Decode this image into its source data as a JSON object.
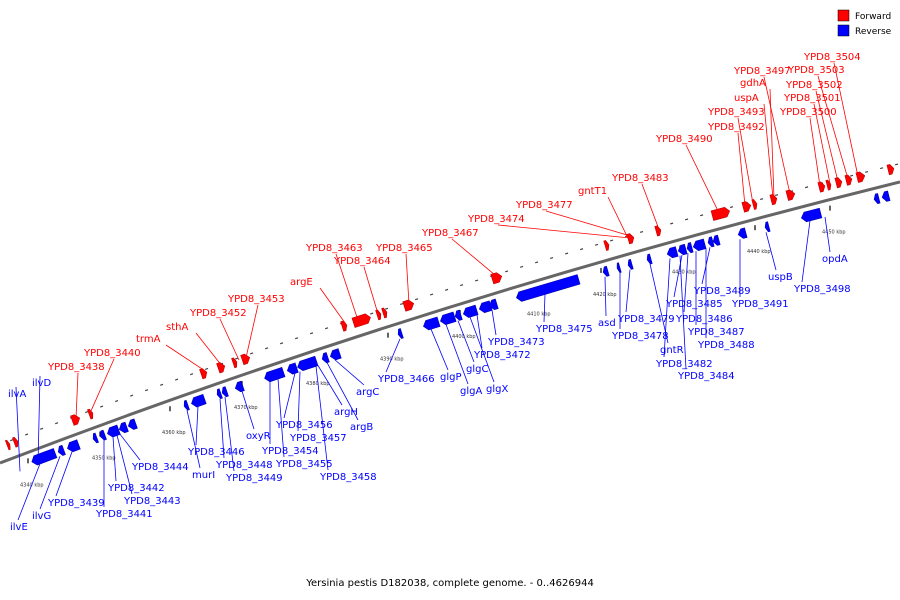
{
  "caption": "Yersinia pestis D182038, complete genome. - 0..4626944",
  "legend": [
    {
      "label": "Forward",
      "color": "#ff0000"
    },
    {
      "label": "Reverse",
      "color": "#0000ff"
    }
  ],
  "colors": {
    "forward": "#ff0000",
    "reverse": "#0000ff",
    "backbone": "#666666"
  },
  "scale_ticks": [
    "4340 kbp",
    "4350 kbp",
    "4360 kbp",
    "4370 kbp",
    "4380 kbp",
    "4390 kbp",
    "4400 kbp",
    "4410 kbp",
    "4420 kbp",
    "4430 kbp",
    "4440 kbp",
    "4450 kbp"
  ],
  "forward_genes": [
    "YPD8_3438",
    "YPD8_3440",
    "trmA",
    "sthA",
    "YPD8_3452",
    "YPD8_3453",
    "argE",
    "YPD8_3463",
    "YPD8_3464",
    "YPD8_3465",
    "YPD8_3467",
    "YPD8_3474",
    "YPD8_3477",
    "gntT1",
    "YPD8_3483",
    "YPD8_3490",
    "YPD8_3492",
    "YPD8_3493",
    "uspA",
    "gdhA",
    "YPD8_3497",
    "YPD8_3500",
    "YPD8_3501",
    "YPD8_3502",
    "YPD8_3503",
    "YPD8_3504"
  ],
  "reverse_genes": [
    "ilvA",
    "ilvD",
    "ilvE",
    "ilvG",
    "YPD8_3439",
    "YPD8_3441",
    "YPD8_3443",
    "YPD8_3442",
    "YPD8_3444",
    "murI",
    "YPD8_3446",
    "YPD8_3448",
    "YPD8_3449",
    "oxyR",
    "YPD8_3454",
    "YPD8_3455",
    "YPD8_3456",
    "YPD8_3457",
    "YPD8_3458",
    "argH",
    "argB",
    "argC",
    "YPD8_3466",
    "glgP",
    "glgA",
    "glgC",
    "glgX",
    "YPD8_3472",
    "YPD8_3473",
    "YPD8_3475",
    "asd",
    "YPD8_3478",
    "YPD8_3479",
    "gntR",
    "YPD8_3482",
    "YPD8_3484",
    "YPD8_3485",
    "YPD8_3486",
    "YPD8_3487",
    "YPD8_3488",
    "YPD8_3489",
    "YPD8_3491",
    "uspB",
    "YPD8_3498",
    "opdA"
  ]
}
